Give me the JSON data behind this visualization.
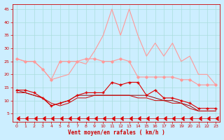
{
  "xlabel": "Vent moyen/en rafales ( km/h )",
  "background_color": "#cceeff",
  "grid_color": "#aadddd",
  "xlim": [
    -0.5,
    23.5
  ],
  "ylim": [
    2,
    47
  ],
  "yticks": [
    5,
    10,
    15,
    20,
    25,
    30,
    35,
    40,
    45
  ],
  "xticks": [
    0,
    1,
    2,
    3,
    4,
    5,
    6,
    7,
    8,
    9,
    10,
    11,
    12,
    13,
    14,
    15,
    16,
    17,
    18,
    19,
    20,
    21,
    22,
    23
  ],
  "series": {
    "pink_max": {
      "x": [
        0,
        1,
        2,
        3,
        4,
        5,
        6,
        7,
        8,
        9,
        10,
        11,
        12,
        13,
        14,
        15,
        16,
        17,
        18,
        19,
        20,
        21,
        22,
        23
      ],
      "y": [
        26,
        25,
        25,
        22,
        18,
        19,
        20,
        25,
        24,
        29,
        35,
        45,
        35,
        45,
        35,
        27,
        32,
        27,
        32,
        25,
        27,
        20,
        20,
        16
      ],
      "color": "#ff9999",
      "linewidth": 0.8
    },
    "pink_avg": {
      "x": [
        0,
        1,
        2,
        3,
        4,
        5,
        6,
        7,
        8,
        9,
        10,
        11,
        12,
        13,
        14,
        15,
        16,
        17,
        18,
        19,
        20,
        21,
        22,
        23
      ],
      "y": [
        26,
        25,
        25,
        22,
        18,
        25,
        25,
        25,
        26,
        26,
        25,
        25,
        26,
        25,
        19,
        19,
        19,
        19,
        19,
        18,
        18,
        16,
        16,
        16
      ],
      "color": "#ff9999",
      "marker": "D",
      "markersize": 1.8,
      "linewidth": 0.8
    },
    "red_main": {
      "x": [
        0,
        1,
        2,
        3,
        4,
        5,
        6,
        7,
        8,
        9,
        10,
        11,
        12,
        13,
        14,
        15,
        16,
        17,
        18,
        19,
        20,
        21,
        22,
        23
      ],
      "y": [
        14,
        14,
        13,
        11,
        8,
        9,
        10,
        12,
        13,
        13,
        13,
        17,
        16,
        17,
        17,
        12,
        14,
        11,
        11,
        10,
        9,
        7,
        7,
        7
      ],
      "color": "#dd0000",
      "marker": "+",
      "markersize": 3.5,
      "linewidth": 0.8
    },
    "dark_line1": {
      "x": [
        0,
        1,
        2,
        3,
        4,
        5,
        6,
        7,
        8,
        9,
        10,
        11,
        12,
        13,
        14,
        15,
        16,
        17,
        18,
        19,
        20,
        21,
        22,
        23
      ],
      "y": [
        14,
        13,
        12,
        11,
        8,
        9,
        10,
        12,
        12,
        12,
        12,
        12,
        12,
        12,
        12,
        12,
        11,
        10,
        10,
        9,
        8,
        6,
        6,
        6
      ],
      "color": "#990000",
      "linewidth": 0.7
    },
    "dark_line2": {
      "x": [
        0,
        1,
        2,
        3,
        4,
        5,
        6,
        7,
        8,
        9,
        10,
        11,
        12,
        13,
        14,
        15,
        16,
        17,
        18,
        19,
        20,
        21,
        22,
        23
      ],
      "y": [
        13,
        13,
        12,
        11,
        9,
        8,
        9,
        11,
        11,
        12,
        12,
        12,
        12,
        12,
        11,
        11,
        10,
        10,
        9,
        9,
        7,
        6,
        6,
        6
      ],
      "color": "#cc0000",
      "linewidth": 0.7
    },
    "arrow_row": {
      "x": [
        0,
        1,
        2,
        3,
        4,
        5,
        6,
        7,
        8,
        9,
        10,
        11,
        12,
        13,
        14,
        15,
        16,
        17,
        18,
        19,
        20,
        21,
        22,
        23
      ],
      "y": [
        3.2,
        3.2,
        3.2,
        3.2,
        3.2,
        3.2,
        3.2,
        3.2,
        3.2,
        3.2,
        3.2,
        3.2,
        3.2,
        3.2,
        3.2,
        3.2,
        3.2,
        3.2,
        3.2,
        3.2,
        3.2,
        3.2,
        3.2,
        3.2
      ],
      "color": "#dd0000",
      "markersize": 4,
      "linewidth": 0.5
    }
  }
}
